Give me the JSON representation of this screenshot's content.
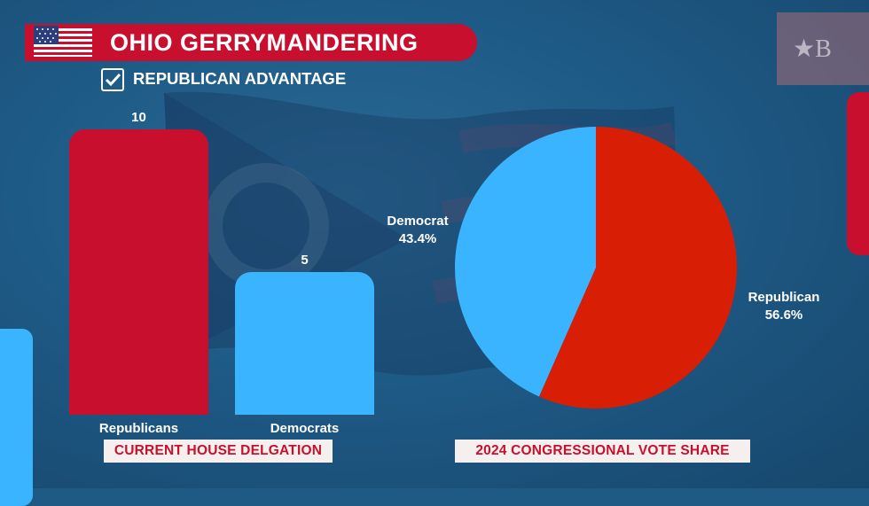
{
  "header": {
    "title": "OHIO GERRYMANDERING",
    "subtitle": "REPUBLICAN ADVANTAGE"
  },
  "colors": {
    "republican": "#c8102e",
    "democrat": "#3ab4ff",
    "pie_republican": "#d81e05",
    "pie_democrat": "#3ab4ff",
    "caption_bg": "#f5f0ee"
  },
  "icons": {
    "flag": "us-flag-icon",
    "check": "checkbox-checked-icon",
    "logo": "star-b-logo-icon"
  },
  "chart_data": [
    {
      "type": "bar",
      "categories": [
        "Republicans",
        "Democrats"
      ],
      "values": [
        10,
        5
      ],
      "data_labels": [
        "10",
        "5"
      ],
      "caption": "CURRENT HOUSE DELGATION",
      "ylim": [
        0,
        10
      ],
      "grid": false
    },
    {
      "type": "pie",
      "labels": [
        "Republican",
        "Democrat"
      ],
      "values": [
        56.6,
        43.4
      ],
      "value_labels": [
        "56.6%",
        "43.4%"
      ],
      "caption": "2024 CONGRESSIONAL VOTE SHARE"
    }
  ]
}
